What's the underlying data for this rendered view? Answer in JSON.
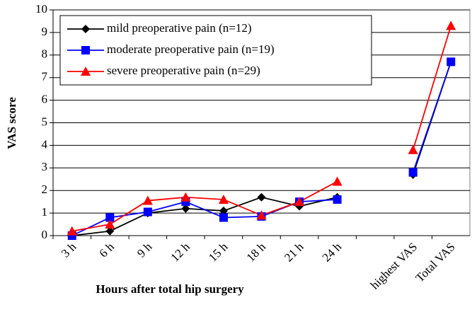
{
  "chart_data": {
    "type": "line",
    "x_label": "Hours after total hip surgery",
    "y_label": "VAS score",
    "categories": [
      "3 h",
      "6 h",
      "9 h",
      "12 h",
      "15 h",
      "18 h",
      "21 h",
      "24 h",
      null,
      "highest VAS",
      "Total VAS"
    ],
    "series": [
      {
        "name": "mild preoperative pain (n=12)",
        "color": "#000000",
        "marker": "diamond",
        "values": [
          0,
          0.2,
          1.0,
          1.2,
          1.1,
          1.7,
          1.3,
          1.7,
          null,
          2.7,
          7.7
        ]
      },
      {
        "name": "moderate preoperative pain (n=19)",
        "color": "#0000ff",
        "marker": "square",
        "values": [
          0,
          0.8,
          1.05,
          1.5,
          0.8,
          0.85,
          1.5,
          1.6,
          null,
          2.8,
          7.7
        ]
      },
      {
        "name": "severe preoperative pain (n=29)",
        "color": "#ff0000",
        "marker": "triangle",
        "values": [
          0.2,
          0.5,
          1.55,
          1.7,
          1.6,
          0.9,
          1.5,
          2.4,
          null,
          3.8,
          9.3
        ]
      }
    ],
    "ylim": [
      0,
      10
    ],
    "yticks": [
      0,
      1,
      2,
      3,
      4,
      5,
      6,
      7,
      8,
      9,
      10
    ],
    "grid": true,
    "legend": "upper-left"
  }
}
